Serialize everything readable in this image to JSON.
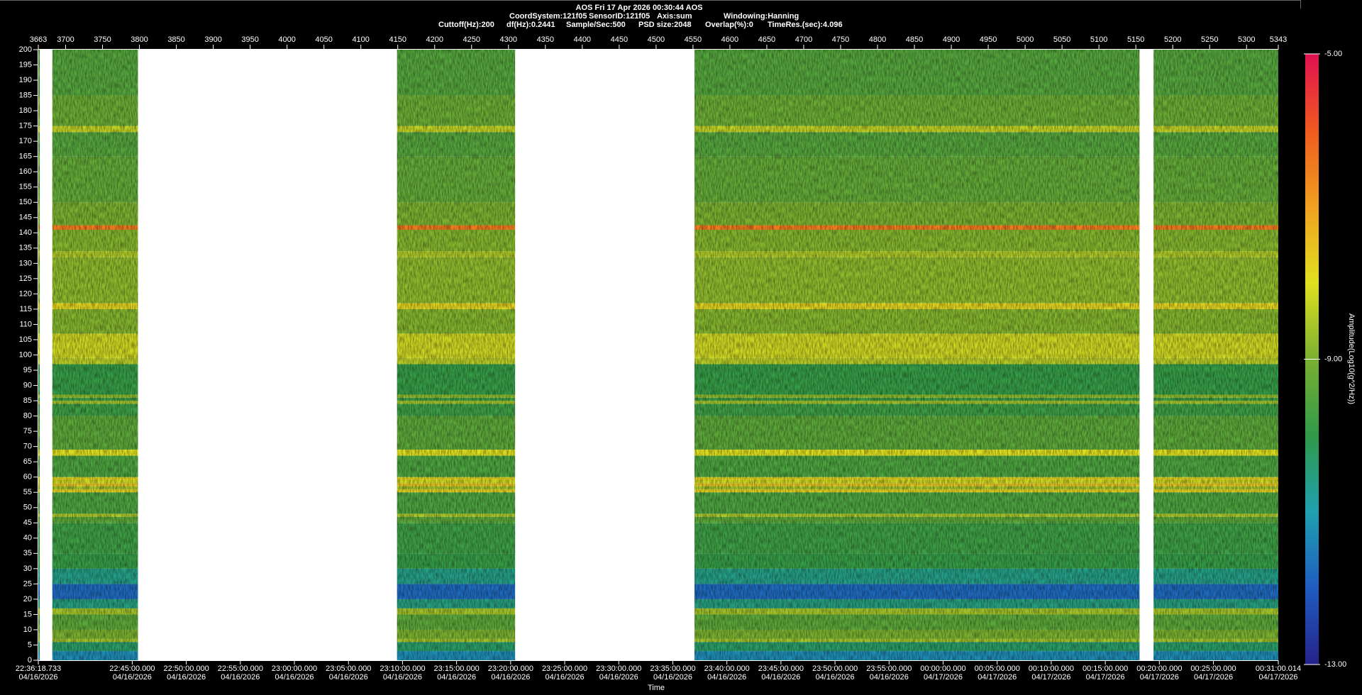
{
  "chart_data": {
    "type": "spectrogram",
    "title": "AOS  Fri 17 Apr 2026 00:30:44  AOS",
    "info": [
      [
        "CoordSystem:121f05",
        "SensorID:121f05",
        "Axis:sum",
        "Windowing:Hanning"
      ],
      [
        "Cuttoff(Hz):200",
        "df(Hz):0.2441",
        "Sample/Sec:500",
        "PSD size:2048",
        "Overlap(%):0",
        "TimeRes.(sec):4.096"
      ]
    ],
    "x_label": "Time",
    "colorbar_label": "Amplitude(Log10(g^2/Hz))",
    "xlim": [
      3663,
      5343
    ],
    "xticks": [
      3663,
      3700,
      3750,
      3800,
      3850,
      3900,
      3950,
      4000,
      4050,
      4100,
      4150,
      4200,
      4250,
      4300,
      4350,
      4400,
      4450,
      4500,
      4550,
      4600,
      4650,
      4700,
      4750,
      4800,
      4850,
      4900,
      4950,
      5000,
      5050,
      5100,
      5150,
      5200,
      5250,
      5300,
      5343
    ],
    "time_lim": [
      81378.733,
      88260.014
    ],
    "time_ticks": [
      {
        "value": 81378.733,
        "label": "22:36:18.733",
        "date": "04/16/2026"
      },
      {
        "value": 81900,
        "label": "22:45:00.000",
        "date": "04/16/2026"
      },
      {
        "value": 82200,
        "label": "22:50:00.000",
        "date": "04/16/2026"
      },
      {
        "value": 82500,
        "label": "22:55:00.000",
        "date": "04/16/2026"
      },
      {
        "value": 82800,
        "label": "23:00:00.000",
        "date": "04/16/2026"
      },
      {
        "value": 83100,
        "label": "23:05:00.000",
        "date": "04/16/2026"
      },
      {
        "value": 83400,
        "label": "23:10:00.000",
        "date": "04/16/2026"
      },
      {
        "value": 83700,
        "label": "23:15:00.000",
        "date": "04/16/2026"
      },
      {
        "value": 84000,
        "label": "23:20:00.000",
        "date": "04/16/2026"
      },
      {
        "value": 84300,
        "label": "23:25:00.000",
        "date": "04/16/2026"
      },
      {
        "value": 84600,
        "label": "23:30:00.000",
        "date": "04/16/2026"
      },
      {
        "value": 84900,
        "label": "23:35:00.000",
        "date": "04/16/2026"
      },
      {
        "value": 85200,
        "label": "23:40:00.000",
        "date": "04/16/2026"
      },
      {
        "value": 85500,
        "label": "23:45:00.000",
        "date": "04/16/2026"
      },
      {
        "value": 85800,
        "label": "23:50:00.000",
        "date": "04/16/2026"
      },
      {
        "value": 86100,
        "label": "23:55:00.000",
        "date": "04/16/2026"
      },
      {
        "value": 86400,
        "label": "00:00:00.000",
        "date": "04/17/2026"
      },
      {
        "value": 86700,
        "label": "00:05:00.000",
        "date": "04/17/2026"
      },
      {
        "value": 87000,
        "label": "00:10:00.000",
        "date": "04/17/2026"
      },
      {
        "value": 87300,
        "label": "00:15:00.000",
        "date": "04/17/2026"
      },
      {
        "value": 87600,
        "label": "00:20:00.000",
        "date": "04/17/2026"
      },
      {
        "value": 87900,
        "label": "00:25:00.000",
        "date": "04/17/2026"
      },
      {
        "value": 88260.014,
        "label": "00:31:00.014",
        "date": "04/17/2026"
      }
    ],
    "ylim": [
      0,
      200
    ],
    "yticks": [
      0,
      5,
      10,
      15,
      20,
      25,
      30,
      35,
      40,
      45,
      50,
      55,
      60,
      65,
      70,
      75,
      80,
      85,
      90,
      95,
      100,
      105,
      110,
      115,
      120,
      125,
      130,
      135,
      140,
      145,
      150,
      155,
      160,
      165,
      170,
      175,
      180,
      185,
      190,
      195,
      200
    ],
    "clim": [
      -13,
      -5
    ],
    "cticks": [
      {
        "value": -13,
        "label": "-13.00"
      },
      {
        "value": -9,
        "label": "-9.00"
      },
      {
        "value": -5,
        "label": "-5.00"
      }
    ],
    "colormap": [
      "#25228a",
      "#1f5cc0",
      "#1fa0b0",
      "#2f9a4a",
      "#7ab030",
      "#e0e020",
      "#f0a020",
      "#f05a20",
      "#e01050"
    ],
    "segments": [
      [
        3663,
        3665
      ],
      [
        3682,
        3798
      ],
      [
        4149,
        4309
      ],
      [
        4552,
        5155
      ],
      [
        5174,
        5343
      ]
    ],
    "freq_edges": [
      0,
      3,
      6,
      7,
      10,
      15,
      17,
      20,
      25,
      30,
      35,
      45,
      47,
      48,
      55,
      56,
      57,
      58,
      59,
      60,
      67,
      69,
      80,
      84,
      85,
      86,
      87,
      97,
      99,
      107,
      115,
      117,
      132,
      134,
      141,
      142.5,
      150,
      165,
      173,
      175,
      185,
      200
    ],
    "amplitude": [
      -11.3,
      -10.3,
      -8.6,
      -9.0,
      -9.4,
      -8.6,
      -10.5,
      -11.8,
      -10.6,
      -9.9,
      -9.8,
      -9.4,
      -8.5,
      -9.6,
      -7.8,
      -8.6,
      -7.6,
      -8.2,
      -7.8,
      -9.6,
      -8.0,
      -9.4,
      -9.8,
      -8.6,
      -9.8,
      -8.8,
      -9.9,
      -8.4,
      -8.2,
      -8.9,
      -7.8,
      -8.8,
      -8.5,
      -8.9,
      -6.5,
      -9.0,
      -9.3,
      -9.5,
      -8.3,
      -9.2,
      -9.5
    ]
  }
}
